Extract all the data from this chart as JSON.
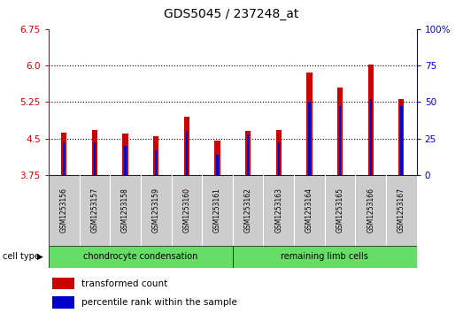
{
  "title": "GDS5045 / 237248_at",
  "samples": [
    "GSM1253156",
    "GSM1253157",
    "GSM1253158",
    "GSM1253159",
    "GSM1253160",
    "GSM1253161",
    "GSM1253162",
    "GSM1253163",
    "GSM1253164",
    "GSM1253165",
    "GSM1253166",
    "GSM1253167"
  ],
  "transformed_count": [
    4.62,
    4.68,
    4.6,
    4.54,
    4.95,
    4.45,
    4.65,
    4.68,
    5.85,
    5.55,
    6.01,
    5.3
  ],
  "percentile_rank": [
    22,
    22,
    20,
    17,
    30,
    14,
    28,
    22,
    50,
    47,
    52,
    47
  ],
  "ylim_left": [
    3.75,
    6.75
  ],
  "yticks_left": [
    3.75,
    4.5,
    5.25,
    6.0,
    6.75
  ],
  "ylim_right": [
    0,
    100
  ],
  "yticks_right": [
    0,
    25,
    50,
    75,
    100
  ],
  "red_color": "#cc0000",
  "blue_color": "#0000cc",
  "group1_label": "chondrocyte condensation",
  "group2_label": "remaining limb cells",
  "group_color": "#66dd66",
  "cell_type_label": "cell type",
  "legend1": "transformed count",
  "legend2": "percentile rank within the sample",
  "title_fontsize": 10
}
